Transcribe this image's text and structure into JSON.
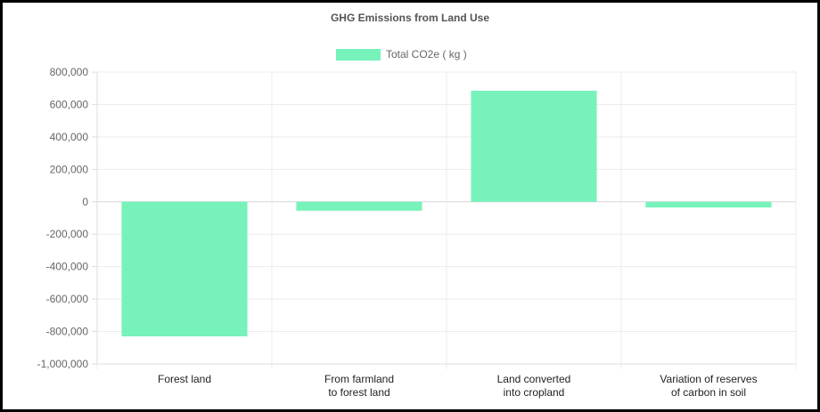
{
  "chart_data": {
    "type": "bar",
    "title": "GHG Emissions from Land Use",
    "categories": [
      [
        "Forest land"
      ],
      [
        "From farmland",
        "to forest land"
      ],
      [
        "Land converted",
        "into cropland"
      ],
      [
        "Variation of reserves",
        "of carbon in soil"
      ]
    ],
    "series": [
      {
        "name": "Total CO2e ( kg )",
        "values": [
          -830000,
          -55000,
          685000,
          -35000
        ],
        "color": "#77f2bb"
      }
    ],
    "ylim": [
      -1000000,
      800000
    ],
    "yticks": [
      800000,
      600000,
      400000,
      200000,
      0,
      -200000,
      -400000,
      -600000,
      -800000,
      -1000000
    ],
    "ytick_labels": [
      "800,000",
      "600,000",
      "400,000",
      "200,000",
      "0",
      "-200,000",
      "-400,000",
      "-600,000",
      "-800,000",
      "-1,000,000"
    ],
    "legend_position": "top",
    "grid": true,
    "xlabel": "",
    "ylabel": ""
  }
}
